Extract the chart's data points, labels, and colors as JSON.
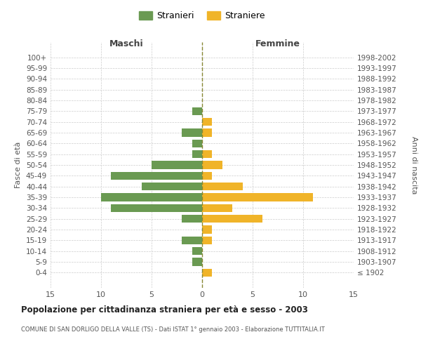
{
  "age_groups": [
    "100+",
    "95-99",
    "90-94",
    "85-89",
    "80-84",
    "75-79",
    "70-74",
    "65-69",
    "60-64",
    "55-59",
    "50-54",
    "45-49",
    "40-44",
    "35-39",
    "30-34",
    "25-29",
    "20-24",
    "15-19",
    "10-14",
    "5-9",
    "0-4"
  ],
  "birth_years": [
    "≤ 1902",
    "1903-1907",
    "1908-1912",
    "1913-1917",
    "1918-1922",
    "1923-1927",
    "1928-1932",
    "1933-1937",
    "1938-1942",
    "1943-1947",
    "1948-1952",
    "1953-1957",
    "1958-1962",
    "1963-1967",
    "1968-1972",
    "1973-1977",
    "1978-1982",
    "1983-1987",
    "1988-1992",
    "1993-1997",
    "1998-2002"
  ],
  "maschi": [
    0,
    0,
    0,
    0,
    0,
    1,
    0,
    2,
    1,
    1,
    5,
    9,
    6,
    10,
    9,
    2,
    0,
    2,
    1,
    1,
    0
  ],
  "femmine": [
    0,
    0,
    0,
    0,
    0,
    0,
    1,
    1,
    0,
    1,
    2,
    1,
    4,
    11,
    3,
    6,
    1,
    1,
    0,
    0,
    1
  ],
  "maschi_color": "#6a9a52",
  "femmine_color": "#f0b429",
  "title": "Popolazione per cittadinanza straniera per età e sesso - 2003",
  "subtitle": "COMUNE DI SAN DORLIGO DELLA VALLE (TS) - Dati ISTAT 1° gennaio 2003 - Elaborazione TUTTITALIA.IT",
  "xlabel_left": "Maschi",
  "xlabel_right": "Femmine",
  "ylabel_left": "Fasce di età",
  "ylabel_right": "Anni di nascita",
  "legend_maschi": "Stranieri",
  "legend_femmine": "Straniere",
  "xlim": 15,
  "background_color": "#ffffff",
  "grid_color": "#cccccc"
}
